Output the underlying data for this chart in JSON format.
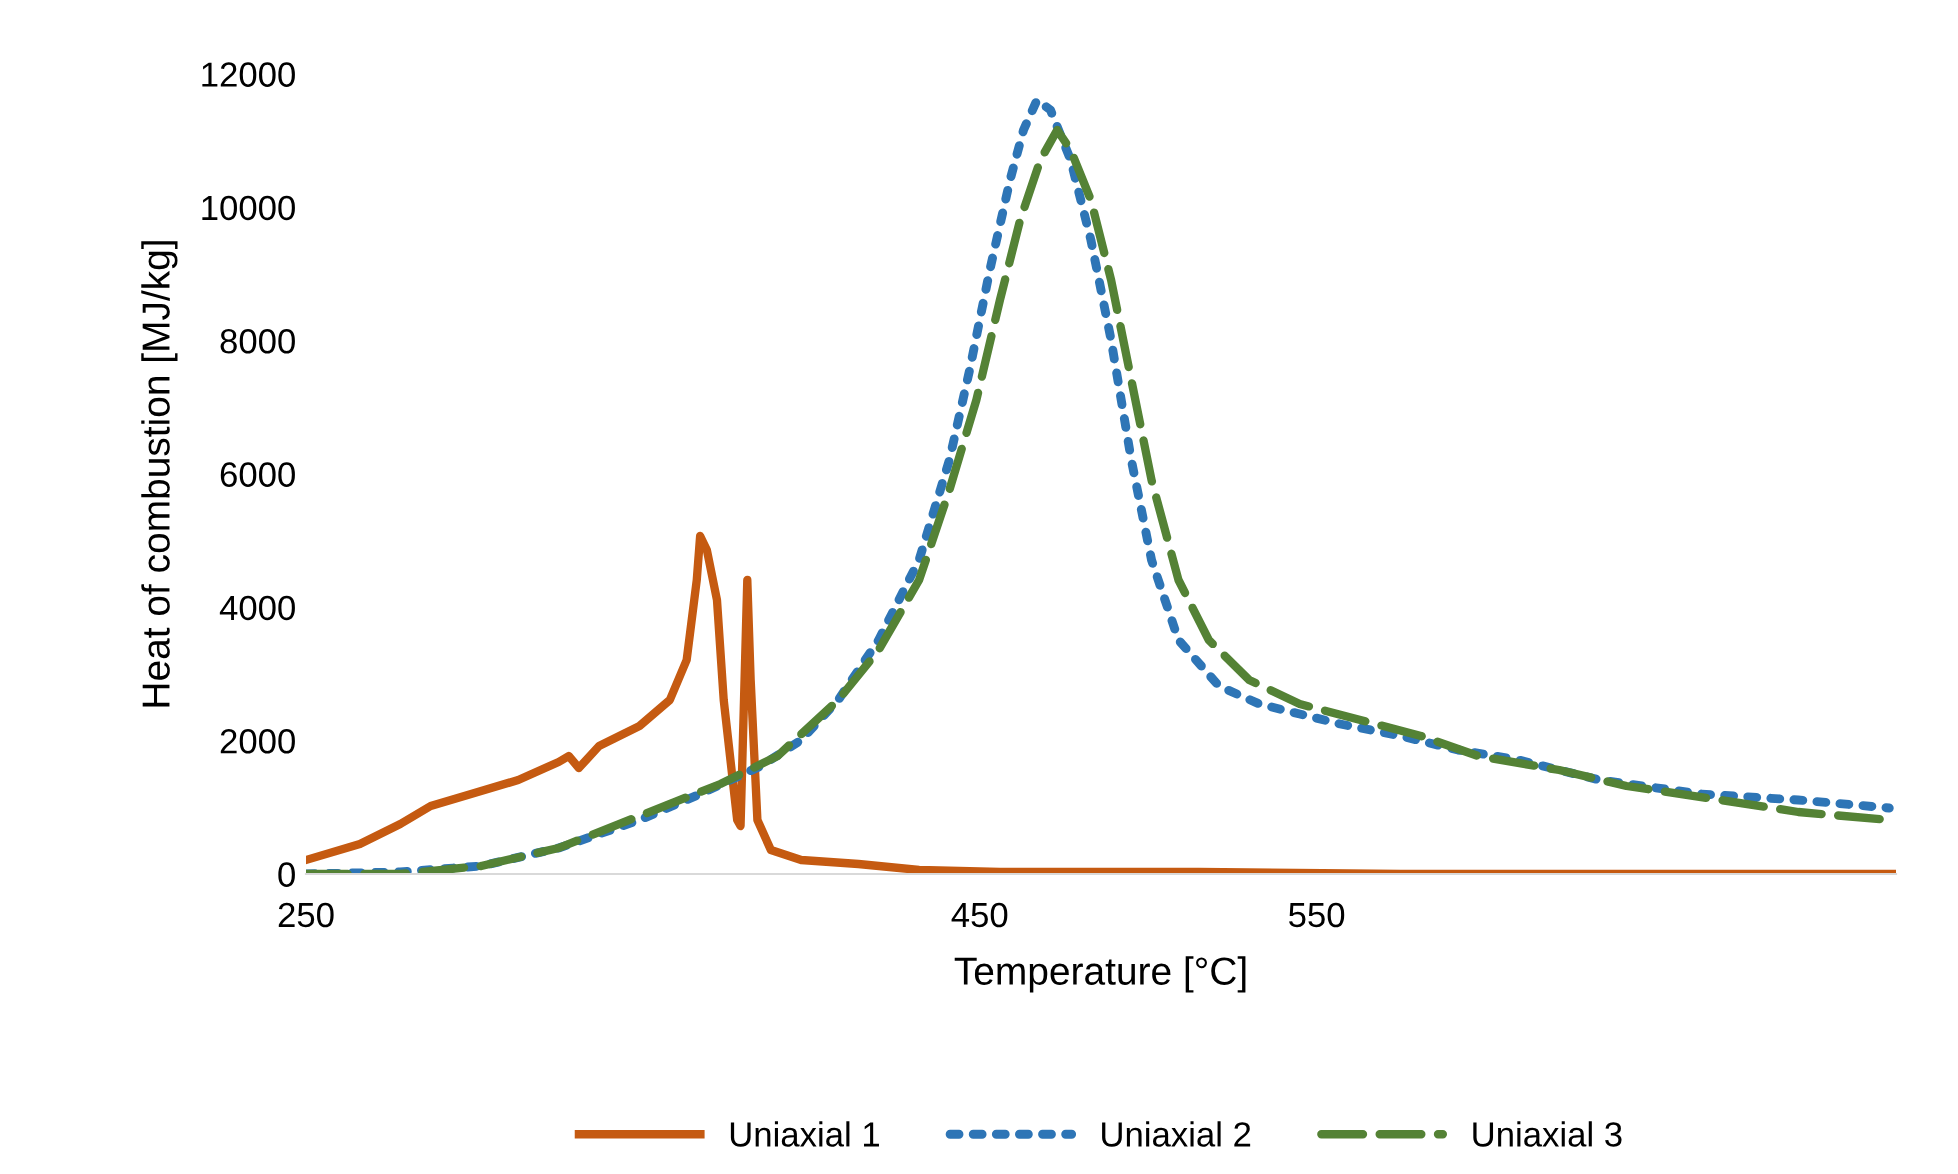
{
  "chart_data": {
    "type": "line",
    "xlabel": "Temperature [°C]",
    "ylabel": "Heat of combustion [MJ/kg]",
    "xlim": [
      250,
      722
    ],
    "xticks": [
      250,
      450,
      550
    ],
    "ylim": [
      0,
      12000
    ],
    "yticks": [
      0,
      2000,
      4000,
      6000,
      8000,
      10000,
      12000
    ],
    "grid": false,
    "legend": "bottom",
    "series": [
      {
        "name": "Uniaxial 1",
        "color": "#c55a11",
        "line_style": "solid",
        "x": [
          250,
          266,
          278,
          287,
          299,
          313,
          325,
          328,
          331,
          337,
          349,
          358,
          363,
          366,
          367,
          369,
          372,
          374,
          378,
          379,
          381,
          382,
          384,
          388,
          397,
          414,
          432,
          456,
          515,
          575,
          634,
          722
        ],
        "values": [
          210,
          450,
          750,
          1020,
          1200,
          1410,
          1680,
          1770,
          1590,
          1920,
          2220,
          2610,
          3210,
          4410,
          5070,
          4860,
          4110,
          2610,
          810,
          720,
          4410,
          2910,
          810,
          360,
          210,
          150,
          60,
          30,
          30,
          0,
          0,
          0
        ]
      },
      {
        "name": "Uniaxial 2",
        "color": "#2e75b6",
        "line_style": "dotted",
        "x": [
          250,
          278,
          302,
          325,
          349,
          367,
          385,
          397,
          408,
          420,
          432,
          441,
          447,
          453,
          459,
          463,
          467,
          471,
          477,
          483,
          489,
          495,
          501,
          509,
          521,
          533,
          545,
          557,
          575,
          592,
          610,
          634,
          664,
          693,
          720
        ],
        "values": [
          0,
          30,
          120,
          390,
          810,
          1200,
          1620,
          2010,
          2610,
          3510,
          4710,
          6210,
          7560,
          9060,
          10410,
          11160,
          11610,
          11460,
          10710,
          9510,
          8010,
          6210,
          4710,
          3510,
          2820,
          2550,
          2400,
          2250,
          2070,
          1860,
          1710,
          1410,
          1200,
          1110,
          990
        ]
      },
      {
        "name": "Uniaxial 3",
        "color": "#548235",
        "line_style": "dashed",
        "x": [
          250,
          278,
          302,
          325,
          349,
          373,
          390,
          408,
          420,
          432,
          441,
          449,
          456,
          462,
          468,
          473,
          477,
          483,
          489,
          495,
          501,
          509,
          518,
          530,
          545,
          563,
          581,
          598,
          622,
          642,
          670,
          693,
          720
        ],
        "values": [
          0,
          0,
          120,
          390,
          870,
          1350,
          1770,
          2610,
          3360,
          4410,
          5760,
          7110,
          8610,
          9810,
          10710,
          11160,
          10860,
          10110,
          8910,
          7410,
          5910,
          4410,
          3510,
          2910,
          2550,
          2310,
          2070,
          1770,
          1560,
          1320,
          1110,
          930,
          810
        ]
      }
    ]
  }
}
